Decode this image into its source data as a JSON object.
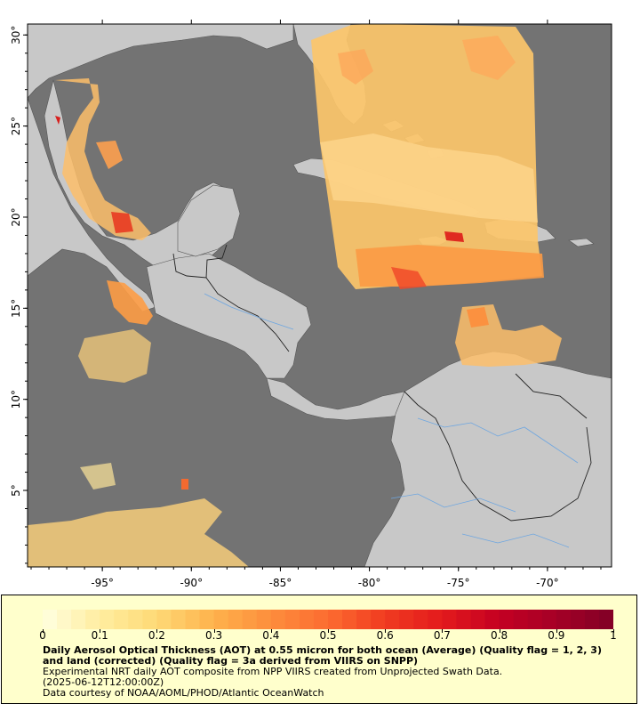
{
  "map": {
    "x_tick_labels": [
      "-95°",
      "-90°",
      "-85°",
      "-80°",
      "-75°",
      "-70°"
    ],
    "x_tick_values": [
      -95,
      -90,
      -85,
      -80,
      -75,
      -70
    ],
    "y_tick_labels": [
      "30°",
      "25°",
      "20°",
      "15°",
      "10°",
      "5°"
    ],
    "y_tick_values": [
      30,
      25,
      20,
      15,
      10,
      5
    ],
    "lon_range": [
      -99.2,
      -66.4
    ],
    "lat_range": [
      0.8,
      30.6
    ],
    "colors": {
      "ocean": "#737373",
      "land": "#c8c8c8",
      "no_data": "#737373"
    }
  },
  "legend": {
    "colorbar_labels": [
      "0",
      "0.1",
      "0.2",
      "0.3",
      "0.4",
      "0.5",
      "0.6",
      "0.7",
      "0.8",
      "0.9",
      "1"
    ],
    "colorbar_min": 0,
    "colorbar_max": 1,
    "colorbar_colors": [
      "#ffffe0",
      "#ffeda0",
      "#fed976",
      "#feb24c",
      "#fd8d3c",
      "#fc6c30",
      "#f03b20",
      "#e31a1c",
      "#c40022",
      "#a50026",
      "#800026"
    ],
    "title": "Daily Aerosol Optical Thickness (AOT) at 0.55 micron for both ocean (Average) (Quality flag = 1, 2, 3) and land (corrected) (Quality flag = 3a derived from VIIRS on SNPP)",
    "line1": "Experimental NRT daily AOT composite from NPP VIIRS created from Unprojected Swath Data.",
    "line2": "(2025-06-12T12:00:00Z)",
    "line3": "Data courtesy of NOAA/AOML/PHOD/Atlantic OceanWatch"
  }
}
